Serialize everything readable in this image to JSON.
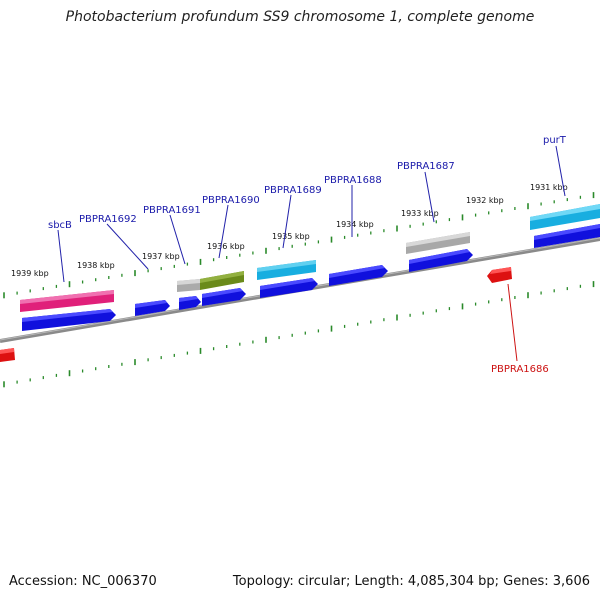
{
  "title": "Photobacterium profundum SS9 chromosome 1, complete genome",
  "accession": "Accession: NC_006370",
  "summary": "Topology: circular; Length: 4,085,304 bp; Genes: 3,606",
  "colors": {
    "label_forward": "#1a1aaa",
    "label_reverse": "#cc1111",
    "tick": "#2a8a2a",
    "backbone": "#777777",
    "cds": "#1010dd",
    "reverse_cds": "#dd1111"
  },
  "kbp_labels": [
    "1939 kbp",
    "1938 kbp",
    "1937 kbp",
    "1936 kbp",
    "1935 kbp",
    "1934 kbp",
    "1933 kbp",
    "1932 kbp",
    "1931 kbp"
  ],
  "gene_labels": [
    "sbcB",
    "PBPRA1692",
    "PBPRA1691",
    "PBPRA1690",
    "PBPRA1689",
    "PBPRA1688",
    "PBPRA1687",
    "purT",
    "PBPRA1686"
  ]
}
